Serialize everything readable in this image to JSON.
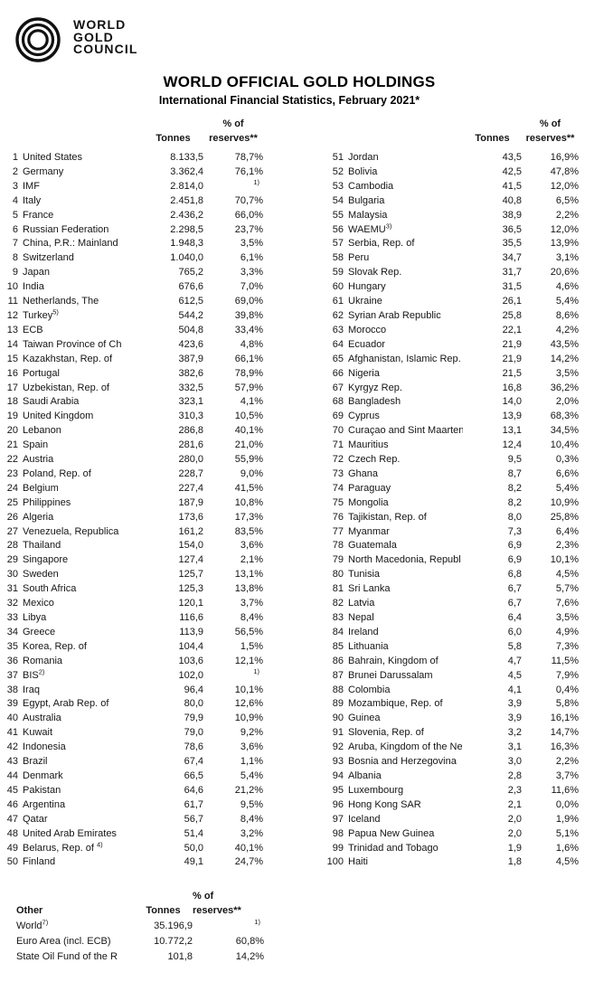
{
  "logo": {
    "lines": [
      "WORLD",
      "GOLD",
      "COUNCIL"
    ]
  },
  "title": "WORLD OFFICIAL GOLD HOLDINGS",
  "subtitle": "International Financial Statistics, February 2021*",
  "table_headers": {
    "pct_of": "% of",
    "tonnes": "Tonnes",
    "reserves": "reserves**"
  },
  "holdings": {
    "row_format": [
      "rank",
      "name",
      "name_superscript",
      "tonnes",
      "pct_of_reserves",
      "pct_superscript"
    ],
    "rows": [
      [
        1,
        "United States",
        "",
        "8.133,5",
        "78,7%",
        ""
      ],
      [
        2,
        "Germany",
        "",
        "3.362,4",
        "76,1%",
        ""
      ],
      [
        3,
        "IMF",
        "",
        "2.814,0",
        "",
        "1)"
      ],
      [
        4,
        "Italy",
        "",
        "2.451,8",
        "70,7%",
        ""
      ],
      [
        5,
        "France",
        "",
        "2.436,2",
        "66,0%",
        ""
      ],
      [
        6,
        "Russian Federation",
        "",
        "2.298,5",
        "23,7%",
        ""
      ],
      [
        7,
        "China, P.R.: Mainland",
        "",
        "1.948,3",
        "3,5%",
        ""
      ],
      [
        8,
        "Switzerland",
        "",
        "1.040,0",
        "6,1%",
        ""
      ],
      [
        9,
        "Japan",
        "",
        "765,2",
        "3,3%",
        ""
      ],
      [
        10,
        "India",
        "",
        "676,6",
        "7,0%",
        ""
      ],
      [
        11,
        "Netherlands, The",
        "",
        "612,5",
        "69,0%",
        ""
      ],
      [
        12,
        "Turkey",
        "5)",
        "544,2",
        "39,8%",
        ""
      ],
      [
        13,
        "ECB",
        "",
        "504,8",
        "33,4%",
        ""
      ],
      [
        14,
        "Taiwan Province of Ch",
        "",
        "423,6",
        "4,8%",
        ""
      ],
      [
        15,
        "Kazakhstan, Rep. of",
        "",
        "387,9",
        "66,1%",
        ""
      ],
      [
        16,
        "Portugal",
        "",
        "382,6",
        "78,9%",
        ""
      ],
      [
        17,
        "Uzbekistan, Rep. of",
        "",
        "332,5",
        "57,9%",
        ""
      ],
      [
        18,
        "Saudi Arabia",
        "",
        "323,1",
        "4,1%",
        ""
      ],
      [
        19,
        "United Kingdom",
        "",
        "310,3",
        "10,5%",
        ""
      ],
      [
        20,
        "Lebanon",
        "",
        "286,8",
        "40,1%",
        ""
      ],
      [
        21,
        "Spain",
        "",
        "281,6",
        "21,0%",
        ""
      ],
      [
        22,
        "Austria",
        "",
        "280,0",
        "55,9%",
        ""
      ],
      [
        23,
        "Poland, Rep. of",
        "",
        "228,7",
        "9,0%",
        ""
      ],
      [
        24,
        "Belgium",
        "",
        "227,4",
        "41,5%",
        ""
      ],
      [
        25,
        "Philippines",
        "",
        "187,9",
        "10,8%",
        ""
      ],
      [
        26,
        "Algeria",
        "",
        "173,6",
        "17,3%",
        ""
      ],
      [
        27,
        "Venezuela, Republica",
        "",
        "161,2",
        "83,5%",
        ""
      ],
      [
        28,
        "Thailand",
        "",
        "154,0",
        "3,6%",
        ""
      ],
      [
        29,
        "Singapore",
        "",
        "127,4",
        "2,1%",
        ""
      ],
      [
        30,
        "Sweden",
        "",
        "125,7",
        "13,1%",
        ""
      ],
      [
        31,
        "South Africa",
        "",
        "125,3",
        "13,8%",
        ""
      ],
      [
        32,
        "Mexico",
        "",
        "120,1",
        "3,7%",
        ""
      ],
      [
        33,
        "Libya",
        "",
        "116,6",
        "8,4%",
        ""
      ],
      [
        34,
        "Greece",
        "",
        "113,9",
        "56,5%",
        ""
      ],
      [
        35,
        "Korea, Rep. of",
        "",
        "104,4",
        "1,5%",
        ""
      ],
      [
        36,
        "Romania",
        "",
        "103,6",
        "12,1%",
        ""
      ],
      [
        37,
        "BIS",
        "2)",
        "102,0",
        "",
        "1)"
      ],
      [
        38,
        "Iraq",
        "",
        "96,4",
        "10,1%",
        ""
      ],
      [
        39,
        "Egypt, Arab Rep. of",
        "",
        "80,0",
        "12,6%",
        ""
      ],
      [
        40,
        "Australia",
        "",
        "79,9",
        "10,9%",
        ""
      ],
      [
        41,
        "Kuwait",
        "",
        "79,0",
        "9,2%",
        ""
      ],
      [
        42,
        "Indonesia",
        "",
        "78,6",
        "3,6%",
        ""
      ],
      [
        43,
        "Brazil",
        "",
        "67,4",
        "1,1%",
        ""
      ],
      [
        44,
        "Denmark",
        "",
        "66,5",
        "5,4%",
        ""
      ],
      [
        45,
        "Pakistan",
        "",
        "64,6",
        "21,2%",
        ""
      ],
      [
        46,
        "Argentina",
        "",
        "61,7",
        "9,5%",
        ""
      ],
      [
        47,
        "Qatar",
        "",
        "56,7",
        "8,4%",
        ""
      ],
      [
        48,
        "United Arab Emirates",
        "",
        "51,4",
        "3,2%",
        ""
      ],
      [
        49,
        "Belarus, Rep. of ",
        "4)",
        "50,0",
        "40,1%",
        ""
      ],
      [
        50,
        "Finland",
        "",
        "49,1",
        "24,7%",
        ""
      ],
      [
        51,
        "Jordan",
        "",
        "43,5",
        "16,9%",
        ""
      ],
      [
        52,
        "Bolivia",
        "",
        "42,5",
        "47,8%",
        ""
      ],
      [
        53,
        "Cambodia",
        "",
        "41,5",
        "12,0%",
        ""
      ],
      [
        54,
        "Bulgaria",
        "",
        "40,8",
        "6,5%",
        ""
      ],
      [
        55,
        "Malaysia",
        "",
        "38,9",
        "2,2%",
        ""
      ],
      [
        56,
        "WAEMU",
        "3)",
        "36,5",
        "12,0%",
        ""
      ],
      [
        57,
        "Serbia, Rep. of",
        "",
        "35,5",
        "13,9%",
        ""
      ],
      [
        58,
        "Peru",
        "",
        "34,7",
        "3,1%",
        ""
      ],
      [
        59,
        "Slovak Rep.",
        "",
        "31,7",
        "20,6%",
        ""
      ],
      [
        60,
        "Hungary",
        "",
        "31,5",
        "4,6%",
        ""
      ],
      [
        61,
        "Ukraine",
        "",
        "26,1",
        "5,4%",
        ""
      ],
      [
        62,
        "Syrian Arab Republic",
        "",
        "25,8",
        "8,6%",
        ""
      ],
      [
        63,
        "Morocco",
        "",
        "22,1",
        "4,2%",
        ""
      ],
      [
        64,
        "Ecuador",
        "",
        "21,9",
        "43,5%",
        ""
      ],
      [
        65,
        "Afghanistan, Islamic Rep.",
        "",
        "21,9",
        "14,2%",
        ""
      ],
      [
        66,
        "Nigeria",
        "",
        "21,5",
        "3,5%",
        ""
      ],
      [
        67,
        "Kyrgyz Rep.",
        "",
        "16,8",
        "36,2%",
        ""
      ],
      [
        68,
        "Bangladesh",
        "",
        "14,0",
        "2,0%",
        ""
      ],
      [
        69,
        "Cyprus",
        "",
        "13,9",
        "68,3%",
        ""
      ],
      [
        70,
        "Curaçao and Sint Maarten",
        "",
        "13,1",
        "34,5%",
        ""
      ],
      [
        71,
        "Mauritius",
        "",
        "12,4",
        "10,4%",
        ""
      ],
      [
        72,
        "Czech Rep.",
        "",
        "9,5",
        "0,3%",
        ""
      ],
      [
        73,
        "Ghana",
        "",
        "8,7",
        "6,6%",
        ""
      ],
      [
        74,
        "Paraguay",
        "",
        "8,2",
        "5,4%",
        ""
      ],
      [
        75,
        "Mongolia",
        "",
        "8,2",
        "10,9%",
        ""
      ],
      [
        76,
        "Tajikistan, Rep. of",
        "",
        "8,0",
        "25,8%",
        ""
      ],
      [
        77,
        "Myanmar",
        "",
        "7,3",
        "6,4%",
        ""
      ],
      [
        78,
        "Guatemala",
        "",
        "6,9",
        "2,3%",
        ""
      ],
      [
        79,
        "North Macedonia, Republ",
        "",
        "6,9",
        "10,1%",
        ""
      ],
      [
        80,
        "Tunisia",
        "",
        "6,8",
        "4,5%",
        ""
      ],
      [
        81,
        "Sri Lanka",
        "",
        "6,7",
        "5,7%",
        ""
      ],
      [
        82,
        "Latvia",
        "",
        "6,7",
        "7,6%",
        ""
      ],
      [
        83,
        "Nepal",
        "",
        "6,4",
        "3,5%",
        ""
      ],
      [
        84,
        "Ireland",
        "",
        "6,0",
        "4,9%",
        ""
      ],
      [
        85,
        "Lithuania",
        "",
        "5,8",
        "7,3%",
        ""
      ],
      [
        86,
        "Bahrain, Kingdom of",
        "",
        "4,7",
        "11,5%",
        ""
      ],
      [
        87,
        "Brunei Darussalam",
        "",
        "4,5",
        "7,9%",
        ""
      ],
      [
        88,
        "Colombia",
        "",
        "4,1",
        "0,4%",
        ""
      ],
      [
        89,
        "Mozambique, Rep. of",
        "",
        "3,9",
        "5,8%",
        ""
      ],
      [
        90,
        "Guinea",
        "",
        "3,9",
        "16,1%",
        ""
      ],
      [
        91,
        "Slovenia, Rep. of",
        "",
        "3,2",
        "14,7%",
        ""
      ],
      [
        92,
        "Aruba, Kingdom of the Ne",
        "",
        "3,1",
        "16,3%",
        ""
      ],
      [
        93,
        "Bosnia and Herzegovina",
        "",
        "3,0",
        "2,2%",
        ""
      ],
      [
        94,
        "Albania",
        "",
        "2,8",
        "3,7%",
        ""
      ],
      [
        95,
        "Luxembourg",
        "",
        "2,3",
        "11,6%",
        ""
      ],
      [
        96,
        "Hong Kong SAR",
        "",
        "2,1",
        "0,0%",
        ""
      ],
      [
        97,
        "Iceland",
        "",
        "2,0",
        "1,9%",
        ""
      ],
      [
        98,
        "Papua New Guinea",
        "",
        "2,0",
        "5,1%",
        ""
      ],
      [
        99,
        "Trinidad and Tobago",
        "",
        "1,9",
        "1,6%",
        ""
      ],
      [
        100,
        "Haiti",
        "",
        "1,8",
        "4,5%",
        ""
      ]
    ]
  },
  "other": {
    "label": "Other",
    "rows": [
      [
        "",
        "World",
        "7)",
        "35.196,9",
        "",
        "1)"
      ],
      [
        "",
        "Euro Area (incl. ECB)",
        "",
        "10.772,2",
        "60,8%",
        ""
      ],
      [
        "",
        "State Oil Fund of the R",
        "",
        "101,8",
        "14,2%",
        ""
      ]
    ]
  }
}
